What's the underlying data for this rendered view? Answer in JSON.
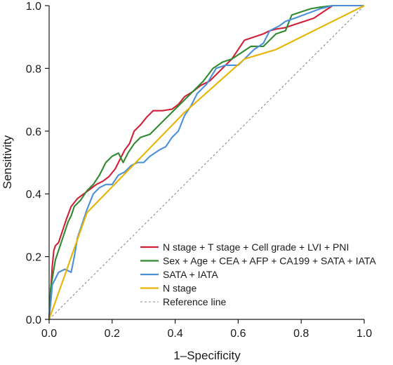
{
  "chart_data": {
    "type": "line",
    "title": "",
    "xlabel": "1–Specificity",
    "ylabel": "Sensitivity",
    "xlim": [
      0,
      1
    ],
    "ylim": [
      0,
      1
    ],
    "xticks": [
      "0.0",
      "0.2",
      "0.4",
      "0.6",
      "0.8",
      "1.0"
    ],
    "yticks": [
      "0.0",
      "0.2",
      "0.4",
      "0.6",
      "0.8",
      "1.0"
    ],
    "grid": false,
    "legend_position": "bottom-right",
    "series": [
      {
        "name": "N stage + T stage + Cell grade + LVI + PNI",
        "color": "#d11f37",
        "points": [
          [
            0,
            0
          ],
          [
            0.005,
            0.09
          ],
          [
            0.01,
            0.17
          ],
          [
            0.015,
            0.22
          ],
          [
            0.02,
            0.235
          ],
          [
            0.03,
            0.245
          ],
          [
            0.035,
            0.26
          ],
          [
            0.045,
            0.29
          ],
          [
            0.055,
            0.32
          ],
          [
            0.07,
            0.36
          ],
          [
            0.09,
            0.385
          ],
          [
            0.11,
            0.4
          ],
          [
            0.13,
            0.415
          ],
          [
            0.15,
            0.43
          ],
          [
            0.17,
            0.44
          ],
          [
            0.19,
            0.455
          ],
          [
            0.21,
            0.48
          ],
          [
            0.225,
            0.51
          ],
          [
            0.24,
            0.54
          ],
          [
            0.255,
            0.56
          ],
          [
            0.27,
            0.6
          ],
          [
            0.29,
            0.62
          ],
          [
            0.31,
            0.645
          ],
          [
            0.33,
            0.665
          ],
          [
            0.36,
            0.665
          ],
          [
            0.39,
            0.67
          ],
          [
            0.41,
            0.685
          ],
          [
            0.43,
            0.71
          ],
          [
            0.455,
            0.725
          ],
          [
            0.48,
            0.745
          ],
          [
            0.51,
            0.76
          ],
          [
            0.54,
            0.79
          ],
          [
            0.56,
            0.81
          ],
          [
            0.58,
            0.83
          ],
          [
            0.6,
            0.86
          ],
          [
            0.62,
            0.89
          ],
          [
            0.65,
            0.9
          ],
          [
            0.68,
            0.91
          ],
          [
            0.7,
            0.92
          ],
          [
            0.72,
            0.925
          ],
          [
            0.75,
            0.93
          ],
          [
            0.78,
            0.94
          ],
          [
            0.81,
            0.95
          ],
          [
            0.84,
            0.96
          ],
          [
            0.87,
            0.98
          ],
          [
            0.9,
            1.0
          ],
          [
            1.0,
            1.0
          ]
        ]
      },
      {
        "name": "Sex + Age + CEA + AFP + CA199 + SATA + IATA",
        "color": "#2f8a2f",
        "points": [
          [
            0,
            0
          ],
          [
            0.005,
            0.1
          ],
          [
            0.01,
            0.13
          ],
          [
            0.015,
            0.16
          ],
          [
            0.02,
            0.19
          ],
          [
            0.03,
            0.22
          ],
          [
            0.04,
            0.25
          ],
          [
            0.05,
            0.28
          ],
          [
            0.06,
            0.31
          ],
          [
            0.07,
            0.33
          ],
          [
            0.08,
            0.36
          ],
          [
            0.09,
            0.37
          ],
          [
            0.1,
            0.38
          ],
          [
            0.12,
            0.41
          ],
          [
            0.14,
            0.43
          ],
          [
            0.16,
            0.46
          ],
          [
            0.18,
            0.5
          ],
          [
            0.2,
            0.52
          ],
          [
            0.22,
            0.53
          ],
          [
            0.235,
            0.5
          ],
          [
            0.25,
            0.53
          ],
          [
            0.27,
            0.56
          ],
          [
            0.29,
            0.58
          ],
          [
            0.32,
            0.59
          ],
          [
            0.34,
            0.61
          ],
          [
            0.37,
            0.64
          ],
          [
            0.4,
            0.67
          ],
          [
            0.43,
            0.7
          ],
          [
            0.46,
            0.73
          ],
          [
            0.49,
            0.76
          ],
          [
            0.52,
            0.8
          ],
          [
            0.55,
            0.82
          ],
          [
            0.58,
            0.83
          ],
          [
            0.61,
            0.85
          ],
          [
            0.64,
            0.87
          ],
          [
            0.68,
            0.87
          ],
          [
            0.72,
            0.91
          ],
          [
            0.75,
            0.92
          ],
          [
            0.77,
            0.97
          ],
          [
            0.8,
            0.98
          ],
          [
            0.83,
            0.99
          ],
          [
            0.86,
            0.995
          ],
          [
            0.9,
            1.0
          ],
          [
            1.0,
            1.0
          ]
        ]
      },
      {
        "name": "SATA + IATA",
        "color": "#4a90d9",
        "points": [
          [
            0,
            0
          ],
          [
            0.005,
            0.05
          ],
          [
            0.01,
            0.11
          ],
          [
            0.02,
            0.13
          ],
          [
            0.03,
            0.15
          ],
          [
            0.05,
            0.16
          ],
          [
            0.07,
            0.15
          ],
          [
            0.08,
            0.2
          ],
          [
            0.09,
            0.26
          ],
          [
            0.1,
            0.29
          ],
          [
            0.12,
            0.35
          ],
          [
            0.14,
            0.4
          ],
          [
            0.16,
            0.42
          ],
          [
            0.18,
            0.43
          ],
          [
            0.2,
            0.43
          ],
          [
            0.22,
            0.46
          ],
          [
            0.24,
            0.47
          ],
          [
            0.26,
            0.49
          ],
          [
            0.28,
            0.5
          ],
          [
            0.3,
            0.5
          ],
          [
            0.32,
            0.52
          ],
          [
            0.35,
            0.54
          ],
          [
            0.37,
            0.55
          ],
          [
            0.39,
            0.58
          ],
          [
            0.41,
            0.6
          ],
          [
            0.43,
            0.65
          ],
          [
            0.45,
            0.68
          ],
          [
            0.47,
            0.72
          ],
          [
            0.5,
            0.75
          ],
          [
            0.53,
            0.8
          ],
          [
            0.56,
            0.81
          ],
          [
            0.6,
            0.81
          ],
          [
            0.62,
            0.83
          ],
          [
            0.65,
            0.86
          ],
          [
            0.68,
            0.88
          ],
          [
            0.7,
            0.92
          ],
          [
            0.73,
            0.935
          ],
          [
            0.75,
            0.95
          ],
          [
            0.78,
            0.96
          ],
          [
            0.82,
            0.975
          ],
          [
            0.86,
            0.99
          ],
          [
            0.9,
            1.0
          ],
          [
            1.0,
            1.0
          ]
        ]
      },
      {
        "name": "N stage",
        "color": "#e8b400",
        "points": [
          [
            0,
            0
          ],
          [
            0.12,
            0.34
          ],
          [
            0.43,
            0.66
          ],
          [
            0.62,
            0.83
          ],
          [
            0.72,
            0.86
          ],
          [
            1.0,
            1.0
          ]
        ]
      },
      {
        "name": "Reference line",
        "color": "#8a8a8a",
        "dashed": true,
        "points": [
          [
            0,
            0
          ],
          [
            1,
            1
          ]
        ]
      }
    ]
  }
}
